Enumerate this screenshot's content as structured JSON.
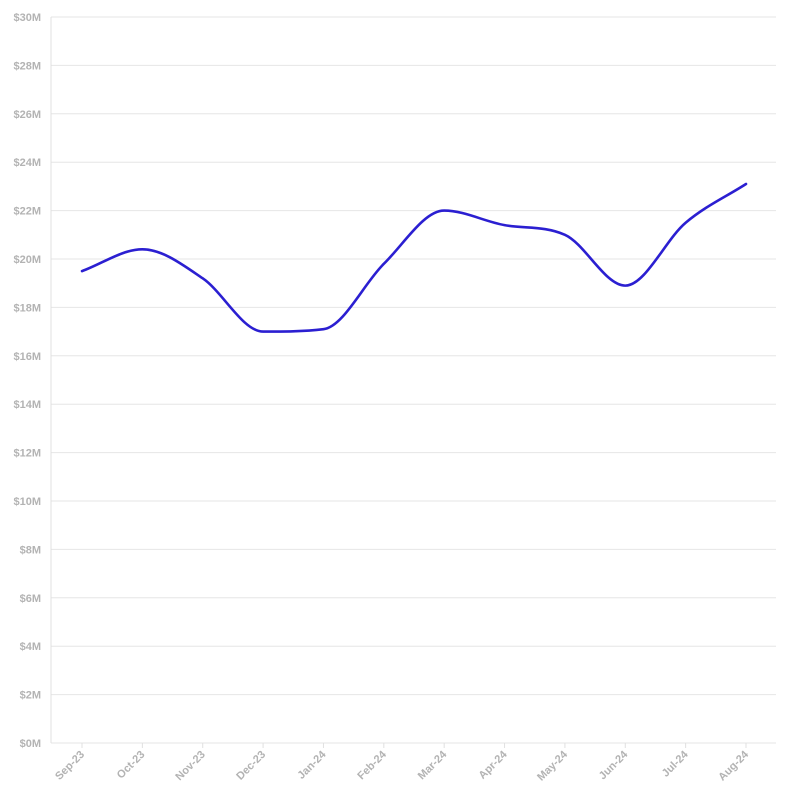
{
  "chart_data": {
    "type": "line",
    "title": "",
    "xlabel": "",
    "ylabel": "",
    "categories": [
      "Sep-23",
      "Oct-23",
      "Nov-23",
      "Dec-23",
      "Jan-24",
      "Feb-24",
      "Mar-24",
      "Apr-24",
      "May-24",
      "Jun-24",
      "Jul-24",
      "Aug-24"
    ],
    "series": [
      {
        "values": [
          19.5,
          20.4,
          19.2,
          17.0,
          17.1,
          19.8,
          22.0,
          21.4,
          21.0,
          18.9,
          21.5,
          23.1
        ]
      }
    ],
    "ylim": [
      0,
      30
    ],
    "yticks": [
      0,
      2,
      4,
      6,
      8,
      10,
      12,
      14,
      16,
      18,
      20,
      22,
      24,
      26,
      28,
      30
    ],
    "ytick_labels": [
      "$0M",
      "$2M",
      "$4M",
      "$6M",
      "$8M",
      "$10M",
      "$12M",
      "$14M",
      "$16M",
      "$18M",
      "$20M",
      "$22M",
      "$24M",
      "$26M",
      "$28M",
      "$30M"
    ],
    "grid": true,
    "legend": "none",
    "line_color": "#2b1fd1",
    "grid_color": "#e6e6e6",
    "label_color": "#b3b3b3"
  }
}
